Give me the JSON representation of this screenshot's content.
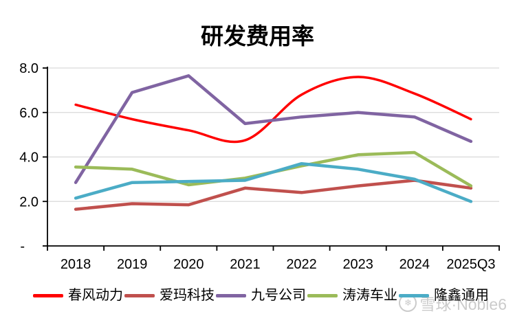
{
  "title": "研发费用率",
  "chart_data": {
    "type": "line",
    "title": "研发费用率",
    "categories": [
      "2018",
      "2019",
      "2020",
      "2021",
      "2022",
      "2023",
      "2024",
      "2025Q3"
    ],
    "series": [
      {
        "name": "春风动力",
        "color": "#FF0000",
        "smooth": true,
        "width": 3.5,
        "values": [
          6.35,
          5.7,
          5.2,
          4.75,
          6.8,
          7.6,
          6.85,
          5.7
        ]
      },
      {
        "name": "爱玛科技",
        "color": "#C0504D",
        "smooth": false,
        "width": 4.5,
        "values": [
          1.65,
          1.9,
          1.85,
          2.6,
          2.4,
          2.7,
          2.95,
          2.6
        ]
      },
      {
        "name": "九号公司",
        "color": "#8064A2",
        "smooth": false,
        "width": 4.5,
        "values": [
          2.85,
          6.9,
          7.65,
          5.5,
          5.8,
          6.0,
          5.8,
          4.7
        ]
      },
      {
        "name": "涛涛车业",
        "color": "#9BBB59",
        "smooth": false,
        "width": 4.5,
        "values": [
          3.55,
          3.45,
          2.75,
          3.05,
          3.6,
          4.1,
          4.2,
          2.7
        ]
      },
      {
        "name": "隆鑫通用",
        "color": "#4BACC6",
        "smooth": false,
        "width": 4.5,
        "values": [
          2.15,
          2.85,
          2.9,
          2.95,
          3.7,
          3.45,
          3.0,
          2.0
        ]
      }
    ],
    "ylim": [
      0,
      8
    ],
    "yticks": [
      {
        "value": 8,
        "label": "8.0"
      },
      {
        "value": 6,
        "label": "6.0"
      },
      {
        "value": 4,
        "label": "4.0"
      },
      {
        "value": 2,
        "label": "2.0"
      },
      {
        "value": 0,
        "label": "-"
      }
    ],
    "grid": true,
    "legend_position": "bottom"
  },
  "colors": {
    "gridline": "#D9D9D9",
    "axis": "#000000",
    "tick_label": "#000000",
    "watermark": "#CBCBCB"
  },
  "watermark": {
    "text": "雪球·Noble6",
    "icon": "snowball-logo"
  }
}
